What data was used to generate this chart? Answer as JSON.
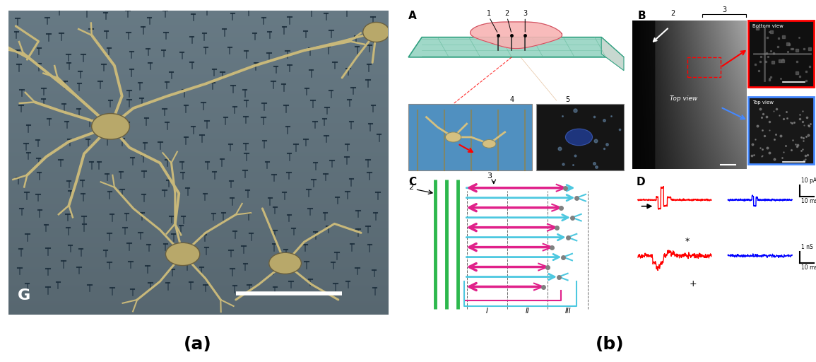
{
  "fig_width": 11.55,
  "fig_height": 5.12,
  "dpi": 100,
  "left_panel": {
    "label": "(a)",
    "label_fontsize": 18,
    "label_fontweight": "bold",
    "bg_color": "#7ab3c5",
    "G_label": "G",
    "G_fontsize": 16,
    "G_color": "white",
    "G_fontweight": "bold"
  },
  "right_panel": {
    "label": "(b)",
    "label_fontsize": 18,
    "label_fontweight": "bold"
  },
  "background_color": "white",
  "magenta": "#e0218a",
  "cyan_arrow": "#4dc8e0",
  "green_wire": "#2db84d",
  "neuron_soma": "#c8b87a",
  "neuron_dendrite": "#c8b87a"
}
